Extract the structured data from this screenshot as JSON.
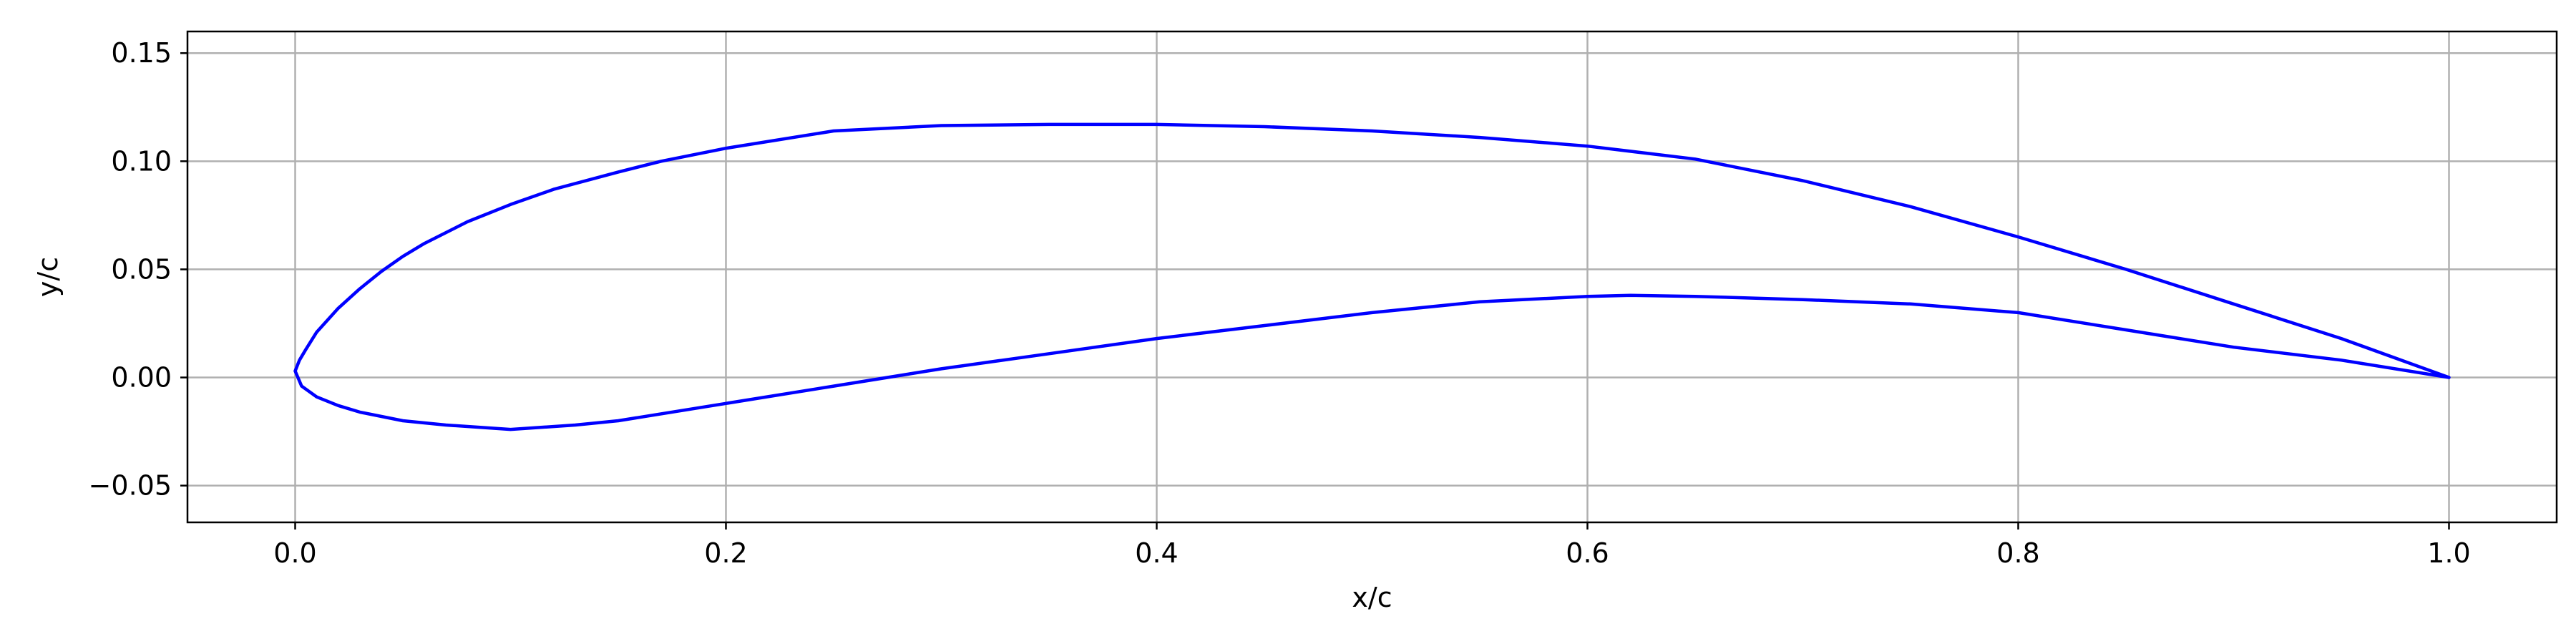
{
  "chart_data": {
    "type": "line",
    "title": "",
    "xlabel": "x/c",
    "ylabel": "y/c",
    "xlim": [
      -0.05,
      1.05
    ],
    "ylim": [
      -0.067,
      0.16
    ],
    "x_ticks": [
      0.0,
      0.2,
      0.4,
      0.6,
      0.8,
      1.0
    ],
    "x_tick_labels": [
      "0.0",
      "0.2",
      "0.4",
      "0.6",
      "0.8",
      "1.0"
    ],
    "y_ticks": [
      -0.05,
      0.0,
      0.05,
      0.1,
      0.15
    ],
    "y_tick_labels": [
      "−0.05",
      "0.00",
      "0.05",
      "0.10",
      "0.15"
    ],
    "grid": true,
    "legend": "none",
    "colors": {
      "series": "#0000ff",
      "grid": "#b0b0b0",
      "axes": "#000000"
    },
    "series": [
      {
        "color": "#0000ff",
        "x": [
          1.0,
          0.95,
          0.9,
          0.85,
          0.8,
          0.75,
          0.7,
          0.65,
          0.6,
          0.55,
          0.5,
          0.45,
          0.4,
          0.35,
          0.3,
          0.25,
          0.2,
          0.17,
          0.15,
          0.12,
          0.1,
          0.08,
          0.06,
          0.05,
          0.04,
          0.03,
          0.02,
          0.01,
          0.005,
          0.002,
          0.0,
          0.0,
          0.003,
          0.01,
          0.02,
          0.03,
          0.05,
          0.07,
          0.1,
          0.13,
          0.15,
          0.2,
          0.25,
          0.3,
          0.35,
          0.4,
          0.45,
          0.5,
          0.55,
          0.6,
          0.62,
          0.65,
          0.7,
          0.75,
          0.8,
          0.85,
          0.9,
          0.95,
          1.0
        ],
        "y": [
          0.0,
          0.018,
          0.034,
          0.05,
          0.065,
          0.079,
          0.091,
          0.101,
          0.107,
          0.111,
          0.114,
          0.116,
          0.117,
          0.117,
          0.1165,
          0.114,
          0.106,
          0.1,
          0.095,
          0.087,
          0.08,
          0.072,
          0.062,
          0.056,
          0.049,
          0.041,
          0.032,
          0.021,
          0.013,
          0.008,
          0.003,
          0.003,
          -0.004,
          -0.009,
          -0.013,
          -0.016,
          -0.02,
          -0.022,
          -0.024,
          -0.022,
          -0.02,
          -0.012,
          -0.004,
          0.004,
          0.011,
          0.018,
          0.024,
          0.03,
          0.035,
          0.0375,
          0.038,
          0.0375,
          0.036,
          0.034,
          0.03,
          0.022,
          0.014,
          0.008,
          0.0
        ]
      }
    ]
  }
}
